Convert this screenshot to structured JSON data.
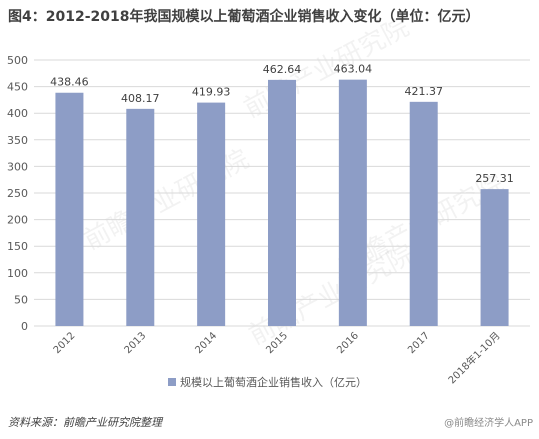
{
  "title": "图4：2012-2018年我国规模以上葡萄酒企业销售收入变化（单位：亿元）",
  "source": "资料来源：前瞻产业研究院整理",
  "footer_mark": "@前瞻经济学人APP",
  "watermark": "前瞻产业研究院",
  "colors": {
    "bar": "#8d9dc6",
    "grid": "#d9d9d9",
    "axis_text": "#595959",
    "label_text": "#404040"
  },
  "chart_data": {
    "type": "bar",
    "categories": [
      "2012",
      "2013",
      "2014",
      "2015",
      "2016",
      "2017",
      "2018年1-10月"
    ],
    "series": [
      {
        "name": "规模以上葡萄酒企业销售收入（亿元）",
        "values": [
          438.46,
          408.17,
          419.93,
          462.64,
          463.04,
          421.37,
          257.31
        ]
      }
    ],
    "data_labels": [
      "438.46",
      "408.17",
      "419.93",
      "462.64",
      "463.04",
      "421.37",
      "257.31"
    ],
    "y_ticks": [
      "0",
      "50",
      "100",
      "150",
      "200",
      "250",
      "300",
      "350",
      "400",
      "450",
      "500"
    ],
    "ylim": [
      0,
      500
    ],
    "grid": true,
    "legend_position": "bottom"
  }
}
